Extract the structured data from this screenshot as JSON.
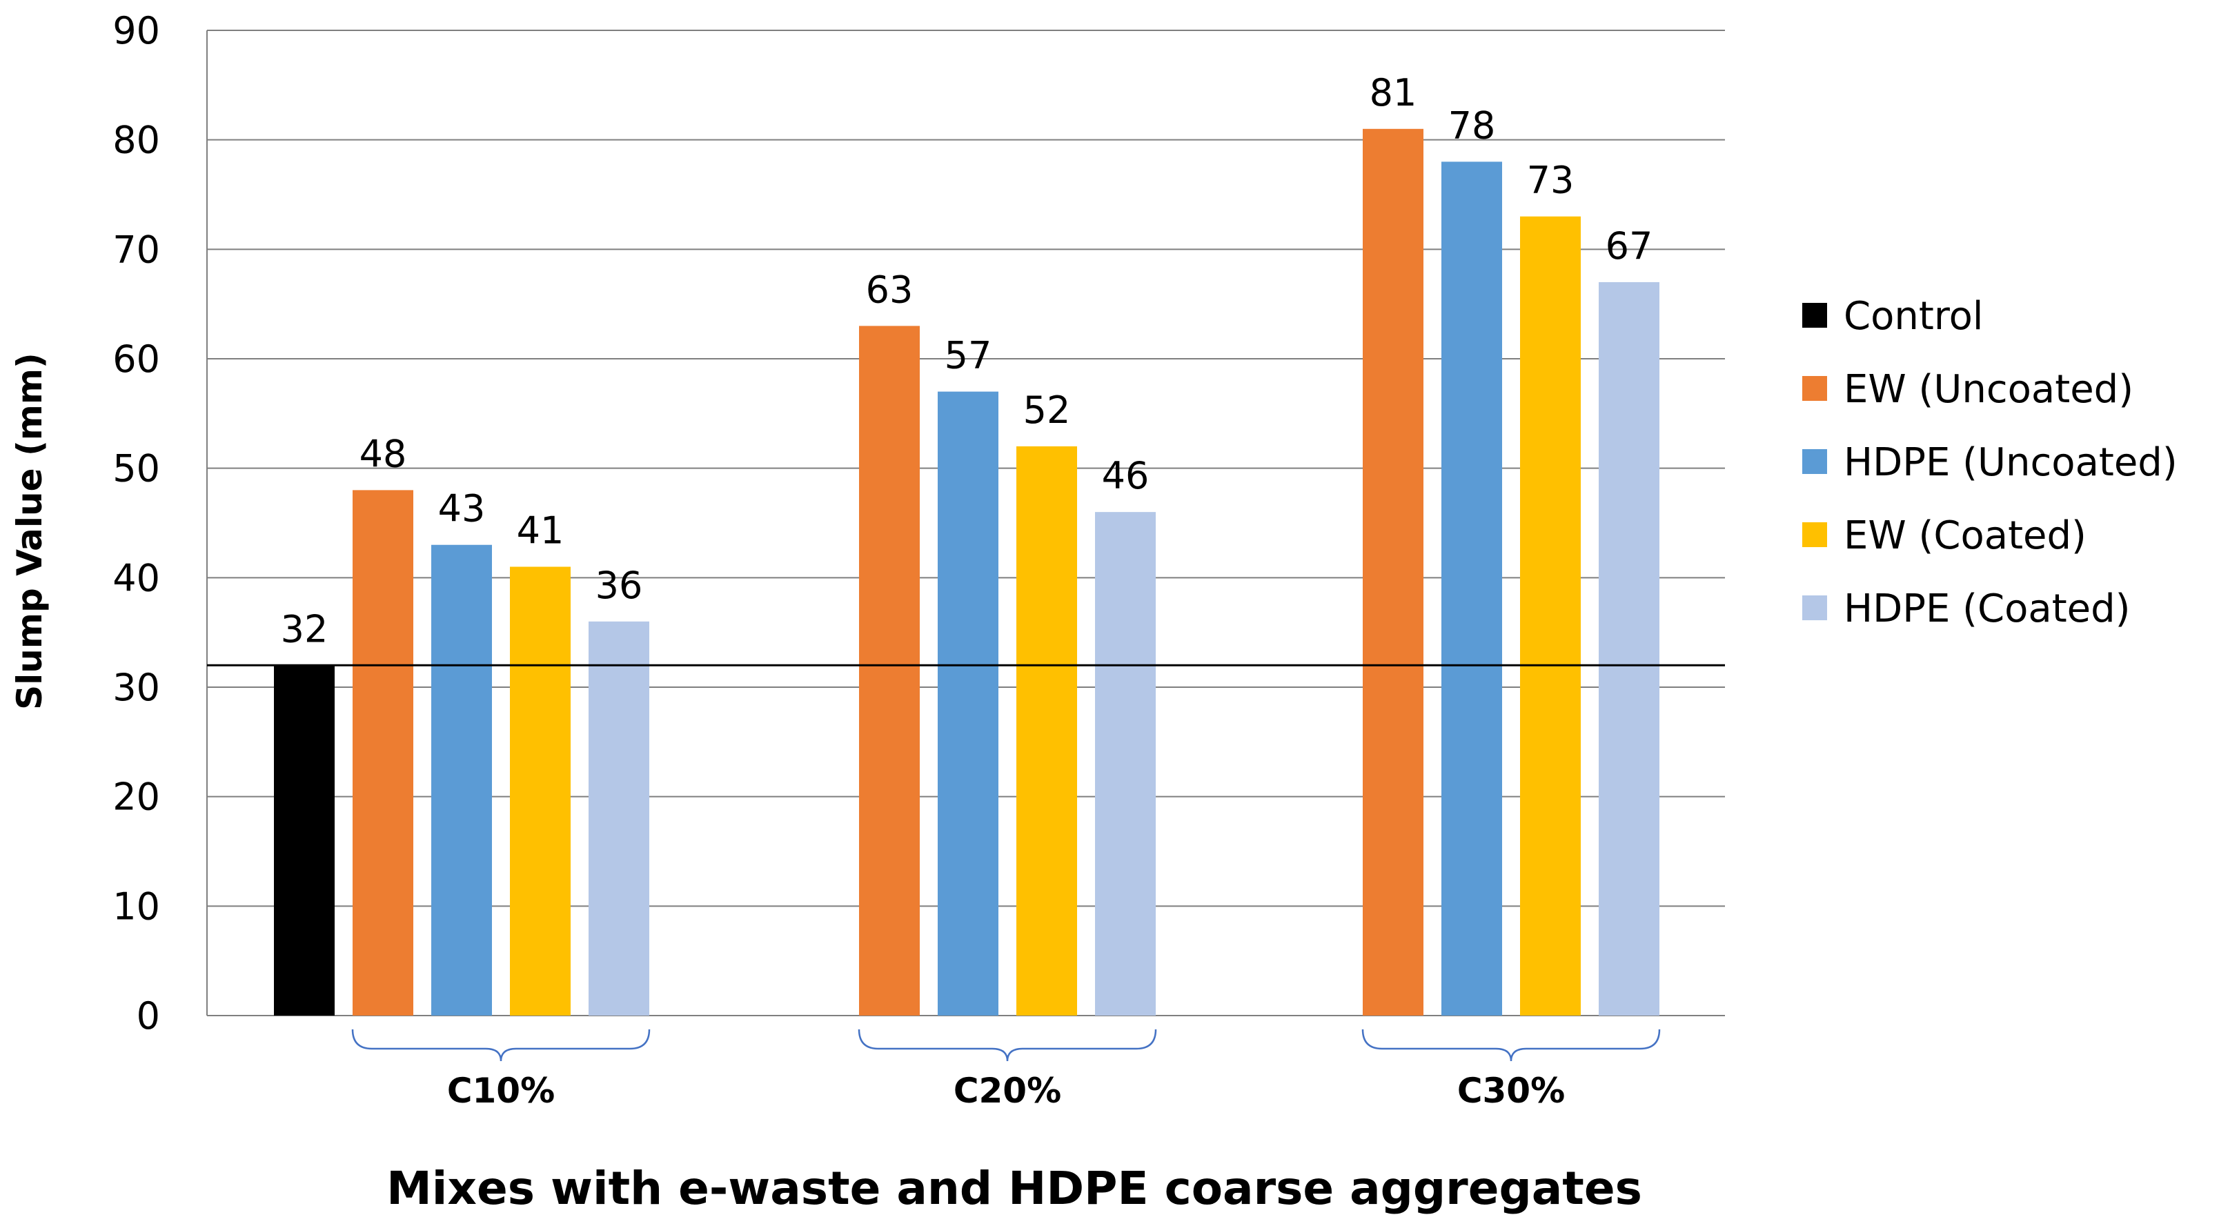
{
  "chart_data": {
    "type": "bar",
    "title": "",
    "xlabel": "Mixes with e-waste and HDPE coarse aggregates",
    "ylabel": "Slump Value (mm)",
    "ylim": [
      0,
      90
    ],
    "yticks": [
      0,
      10,
      20,
      30,
      40,
      50,
      60,
      70,
      80,
      90
    ],
    "grid": true,
    "legend_position": "right",
    "reference_line": 32,
    "categories": [
      "C10%",
      "C20%",
      "C30%"
    ],
    "series": [
      {
        "name": "Control",
        "color": "#000000",
        "values": [
          32,
          null,
          null
        ]
      },
      {
        "name": "EW (Uncoated)",
        "color": "#ED7D31",
        "values": [
          48,
          63,
          81
        ]
      },
      {
        "name": "HDPE (Uncoated)",
        "color": "#5B9BD5",
        "values": [
          43,
          57,
          78
        ]
      },
      {
        "name": "EW (Coated)",
        "color": "#FFC000",
        "values": [
          41,
          52,
          73
        ]
      },
      {
        "name": "HDPE (Coated)",
        "color": "#B4C7E7",
        "values": [
          36,
          46,
          67
        ]
      }
    ]
  }
}
